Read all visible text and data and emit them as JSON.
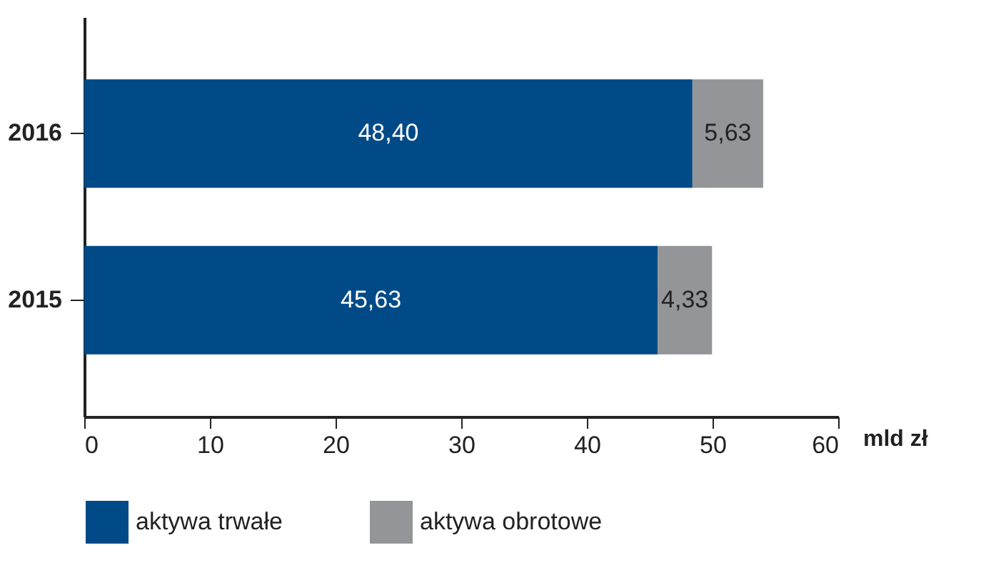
{
  "chart_data": {
    "type": "bar",
    "orientation": "horizontal",
    "stacked": true,
    "categories": [
      "2016",
      "2015"
    ],
    "series": [
      {
        "name": "aktywa trwałe",
        "color": "#004a87",
        "values": [
          48.4,
          45.63
        ],
        "value_labels": [
          "48,40",
          "45,63"
        ]
      },
      {
        "name": "aktywa obrotowe",
        "color": "#939598",
        "values": [
          5.63,
          4.33
        ],
        "value_labels": [
          "5,63",
          "4,33"
        ]
      }
    ],
    "xlim": [
      0,
      60
    ],
    "xticks": [
      0,
      10,
      20,
      30,
      40,
      50,
      60
    ],
    "xlabel": "mld zł",
    "legend": "bottom",
    "grid": false
  }
}
